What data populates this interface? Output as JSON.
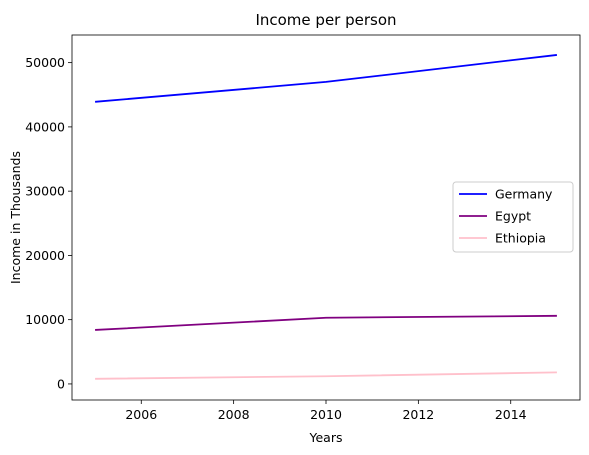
{
  "chart_data": {
    "type": "line",
    "title": "Income per person",
    "xlabel": "Years",
    "ylabel": "Income in Thousands",
    "x": [
      2005,
      2010,
      2015
    ],
    "xlim": [
      2004.5,
      2015.5
    ],
    "ylim": [
      -2500,
      54300
    ],
    "xticks": [
      2006,
      2008,
      2010,
      2012,
      2014
    ],
    "yticks": [
      0,
      10000,
      20000,
      30000,
      40000,
      50000
    ],
    "grid": false,
    "legend_position": "center-right",
    "series": [
      {
        "name": " Germany",
        "color": "#0000ff",
        "values": [
          43900,
          47000,
          51200
        ]
      },
      {
        "name": " Egypt",
        "color": "#800080",
        "values": [
          8400,
          10300,
          10600
        ]
      },
      {
        "name": " Ethiopia",
        "color": "#ffc0cb",
        "values": [
          800,
          1200,
          1800
        ]
      }
    ]
  }
}
